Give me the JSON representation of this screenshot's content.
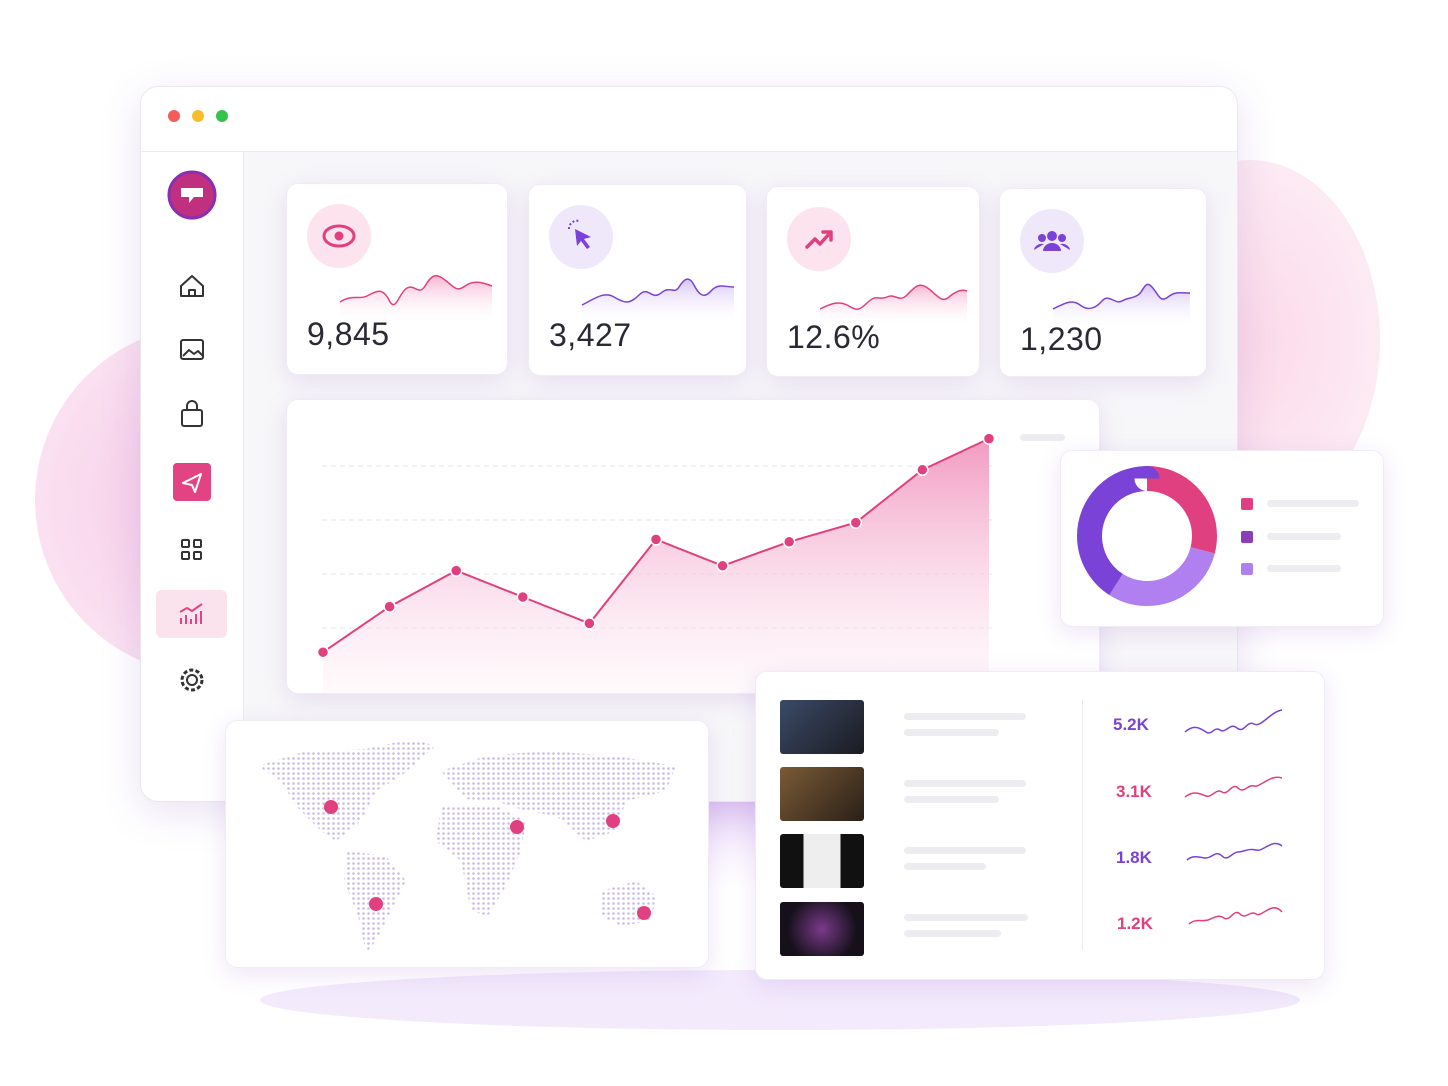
{
  "stats": [
    {
      "value": "9,845"
    },
    {
      "value": "3,427"
    },
    {
      "value": "12.6%"
    },
    {
      "value": "1,230"
    }
  ],
  "main_chart": {
    "type": "line",
    "values": [
      7,
      26,
      41,
      30,
      19,
      54,
      43,
      53,
      61,
      83,
      96
    ],
    "ylim": [
      0,
      100
    ],
    "color": "#e0407f"
  },
  "donut": {
    "type": "pie",
    "values": [
      29,
      30,
      41
    ],
    "colors": [
      "#e0407f",
      "#b07ff0",
      "#7a42d6"
    ]
  },
  "videos": [
    {
      "views": "5.2K"
    },
    {
      "views": "3.1K"
    },
    {
      "views": "1.8K"
    },
    {
      "views": "1.2K"
    }
  ]
}
